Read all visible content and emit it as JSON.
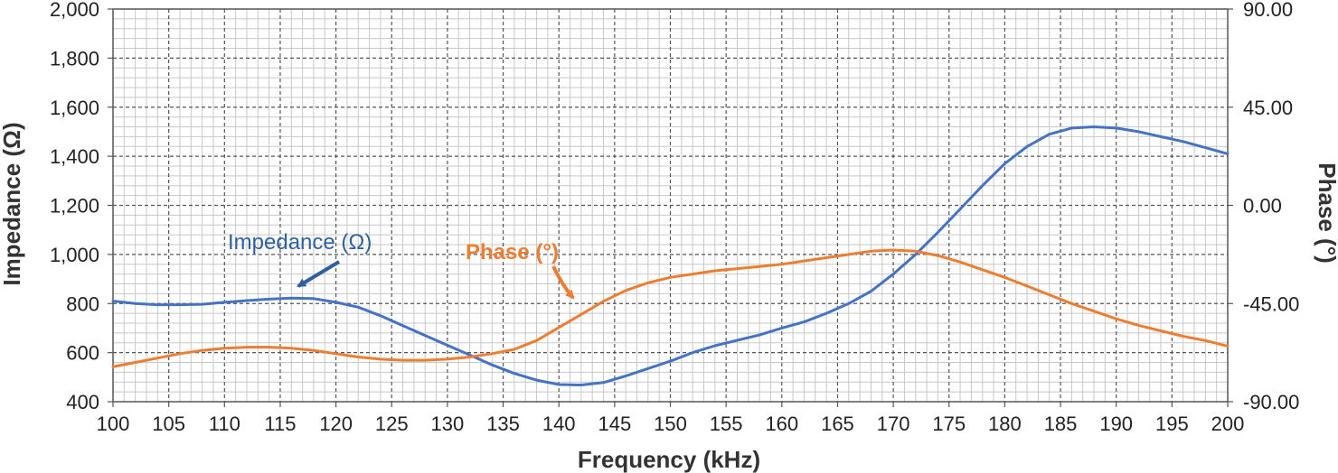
{
  "chart_data": {
    "type": "line",
    "xlabel": "Frequency (kHz)",
    "ylabel": "Impedance (Ω)",
    "y2label": "Phase (°)",
    "xlim": [
      100,
      200
    ],
    "ylim": [
      400,
      2000
    ],
    "y2lim": [
      -90,
      90
    ],
    "grid": true,
    "x_ticks": [
      "100",
      "105",
      "110",
      "115",
      "120",
      "125",
      "130",
      "135",
      "140",
      "145",
      "150",
      "155",
      "160",
      "165",
      "170",
      "175",
      "180",
      "185",
      "190",
      "195",
      "200"
    ],
    "y_ticks": [
      "400",
      "600",
      "800",
      "1,000",
      "1,200",
      "1,400",
      "1,600",
      "1,800",
      "2,000"
    ],
    "y2_ticks": [
      "-90.00",
      "-45.00",
      "0.00",
      "45.00",
      "90.00"
    ],
    "series": [
      {
        "name": "Impedance (Ω)",
        "axis": "left",
        "color": "#4472c4",
        "label_color": "#2e5fa0",
        "x": [
          100,
          102,
          104,
          106,
          108,
          110,
          112,
          114,
          116,
          118,
          120,
          122,
          124,
          126,
          128,
          130,
          132,
          134,
          136,
          138,
          140,
          142,
          144,
          146,
          148,
          150,
          152,
          154,
          156,
          158,
          160,
          162,
          164,
          166,
          168,
          170,
          172,
          174,
          176,
          178,
          180,
          182,
          184,
          186,
          188,
          190,
          192,
          194,
          196,
          198,
          200
        ],
        "values": [
          810,
          800,
          795,
          795,
          797,
          805,
          812,
          818,
          822,
          820,
          805,
          785,
          750,
          710,
          670,
          630,
          590,
          550,
          515,
          488,
          470,
          468,
          478,
          505,
          535,
          565,
          600,
          628,
          650,
          672,
          700,
          725,
          760,
          800,
          850,
          920,
          1000,
          1090,
          1185,
          1280,
          1370,
          1440,
          1490,
          1515,
          1520,
          1515,
          1500,
          1480,
          1460,
          1435,
          1410
        ]
      },
      {
        "name": "Phase (°)",
        "axis": "right",
        "color": "#ed7d31",
        "label_color": "#ed7d31",
        "x": [
          100,
          102,
          104,
          106,
          108,
          110,
          112,
          114,
          116,
          118,
          120,
          122,
          124,
          126,
          128,
          130,
          132,
          134,
          136,
          138,
          140,
          142,
          144,
          146,
          148,
          150,
          152,
          154,
          156,
          158,
          160,
          162,
          164,
          166,
          168,
          170,
          172,
          174,
          176,
          178,
          180,
          182,
          184,
          186,
          188,
          190,
          192,
          194,
          196,
          198,
          200
        ],
        "values": [
          -74,
          -72,
          -70,
          -68,
          -66.5,
          -65.5,
          -65,
          -65,
          -65.5,
          -66.5,
          -68,
          -69.5,
          -70.5,
          -71,
          -71,
          -70.5,
          -69.5,
          -68,
          -66,
          -62,
          -56,
          -50,
          -44,
          -39,
          -35.5,
          -33,
          -31.5,
          -30,
          -29,
          -28,
          -27,
          -25.5,
          -24,
          -22.5,
          -21,
          -20.5,
          -21,
          -23,
          -26,
          -29.5,
          -33,
          -37,
          -41,
          -45,
          -48.5,
          -52,
          -55,
          -57.5,
          -60,
          -62,
          -64.5
        ]
      }
    ]
  }
}
